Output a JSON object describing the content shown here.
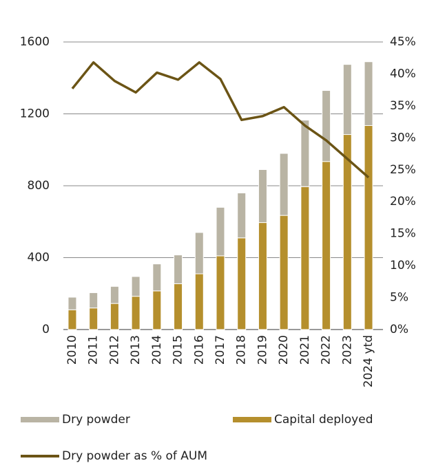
{
  "chart_data": {
    "type": "bar",
    "categories": [
      "2010",
      "2011",
      "2012",
      "2013",
      "2014",
      "2015",
      "2016",
      "2017",
      "2018",
      "2019",
      "2020",
      "2021",
      "2022",
      "2023",
      "2024 ytd"
    ],
    "stacked": true,
    "series": [
      {
        "name": "Capital deployed",
        "color": "#b58f2d",
        "values": [
          110,
          120,
          145,
          185,
          215,
          255,
          310,
          410,
          510,
          595,
          635,
          795,
          935,
          1085,
          1135
        ]
      },
      {
        "name": "Dry powder",
        "color": "#b9b4a4",
        "values": [
          70,
          85,
          95,
          110,
          150,
          160,
          230,
          270,
          250,
          295,
          345,
          370,
          395,
          390,
          355
        ]
      },
      {
        "name": "Dry powder as % of AUM",
        "type": "line",
        "axis": "y2",
        "color": "#6b5415",
        "values": [
          37.7,
          41.8,
          38.9,
          37.1,
          40.2,
          39.1,
          41.8,
          39.2,
          32.8,
          33.4,
          34.8,
          31.9,
          29.6,
          26.7,
          23.8
        ]
      }
    ],
    "ylim": [
      0,
      1600
    ],
    "yticks": [
      0,
      400,
      800,
      1200,
      1600
    ],
    "y2lim": [
      0,
      45
    ],
    "y2ticks": [
      {
        "value": 0,
        "label": "0%"
      },
      {
        "value": 5,
        "label": "5%"
      },
      {
        "value": 10,
        "label": "10%"
      },
      {
        "value": 15,
        "label": "15%"
      },
      {
        "value": 20,
        "label": "20%"
      },
      {
        "value": 25,
        "label": "25%"
      },
      {
        "value": 30,
        "label": "30%"
      },
      {
        "value": 35,
        "label": "35%"
      },
      {
        "value": 40,
        "label": "40%"
      },
      {
        "value": 45,
        "label": "45%"
      }
    ],
    "grid": true,
    "legend": "bottom"
  }
}
